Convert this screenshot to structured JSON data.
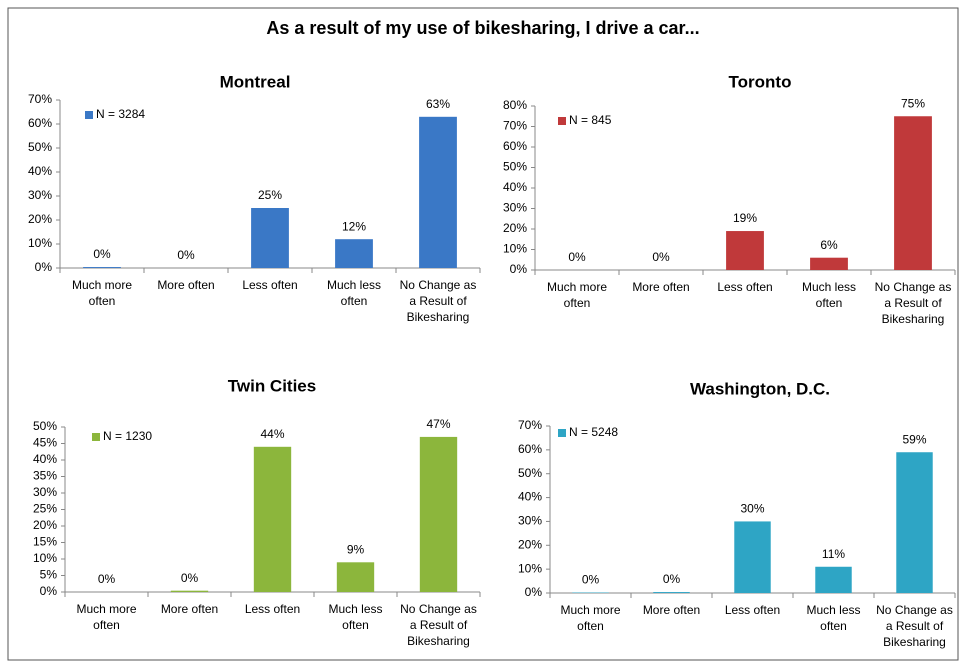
{
  "title": "As a result of my use of bikesharing, I drive a car...",
  "chart_data": [
    {
      "type": "bar",
      "title": "Montreal",
      "categories": [
        "Much more often",
        "More often",
        "Less often",
        "Much less often",
        "No Change as a Result of Bikesharing"
      ],
      "series": [
        {
          "name": "N = 3284",
          "color": "#3a78c6",
          "values": [
            0.4,
            0,
            25,
            12,
            63
          ],
          "value_labels": [
            "0%",
            "0%",
            "25%",
            "12%",
            "63%"
          ]
        }
      ],
      "ylim": [
        0,
        70
      ],
      "yticks": [
        {
          "value": 0,
          "label": "0%"
        },
        {
          "value": 10,
          "label": "10%"
        },
        {
          "value": 20,
          "label": "20%"
        },
        {
          "value": 30,
          "label": "30%"
        },
        {
          "value": 40,
          "label": "40%"
        },
        {
          "value": 50,
          "label": "50%"
        },
        {
          "value": 60,
          "label": "60%"
        },
        {
          "value": 70,
          "label": "70%"
        }
      ],
      "grid": false,
      "legend": "top-left"
    },
    {
      "type": "bar",
      "title": "Toronto",
      "categories": [
        "Much more often",
        "More often",
        "Less often",
        "Much less often",
        "No Change as a Result of Bikesharing"
      ],
      "series": [
        {
          "name": "N = 845",
          "color": "#c0393a",
          "values": [
            0,
            0,
            19,
            6,
            75
          ],
          "value_labels": [
            "0%",
            "0%",
            "19%",
            "6%",
            "75%"
          ]
        }
      ],
      "ylim": [
        0,
        80
      ],
      "yticks": [
        {
          "value": 0,
          "label": "0%"
        },
        {
          "value": 10,
          "label": "10%"
        },
        {
          "value": 20,
          "label": "20%"
        },
        {
          "value": 30,
          "label": "30%"
        },
        {
          "value": 40,
          "label": "40%"
        },
        {
          "value": 50,
          "label": "50%"
        },
        {
          "value": 60,
          "label": "60%"
        },
        {
          "value": 70,
          "label": "70%"
        },
        {
          "value": 80,
          "label": "80%"
        }
      ],
      "grid": false,
      "legend": "top-left"
    },
    {
      "type": "bar",
      "title": "Twin Cities",
      "categories": [
        "Much more often",
        "More often",
        "Less often",
        "Much less often",
        "No Change as a Result of Bikesharing"
      ],
      "series": [
        {
          "name": "N = 1230",
          "color": "#8cb63c",
          "values": [
            0,
            0.4,
            44,
            9,
            47
          ],
          "value_labels": [
            "0%",
            "0%",
            "44%",
            "9%",
            "47%"
          ]
        }
      ],
      "ylim": [
        0,
        50
      ],
      "yticks": [
        {
          "value": 0,
          "label": "0%"
        },
        {
          "value": 5,
          "label": "5%"
        },
        {
          "value": 10,
          "label": "10%"
        },
        {
          "value": 15,
          "label": "15%"
        },
        {
          "value": 20,
          "label": "20%"
        },
        {
          "value": 25,
          "label": "25%"
        },
        {
          "value": 30,
          "label": "30%"
        },
        {
          "value": 35,
          "label": "35%"
        },
        {
          "value": 40,
          "label": "40%"
        },
        {
          "value": 45,
          "label": "45%"
        },
        {
          "value": 50,
          "label": "50%"
        }
      ],
      "grid": false,
      "legend": "top-left"
    },
    {
      "type": "bar",
      "title": "Washington, D.C.",
      "categories": [
        "Much more often",
        "More often",
        "Less often",
        "Much less often",
        "No Change as a Result of Bikesharing"
      ],
      "series": [
        {
          "name": "N = 5248",
          "color": "#2ea5c5",
          "values": [
            0.2,
            0.4,
            30,
            11,
            59
          ],
          "value_labels": [
            "0%",
            "0%",
            "30%",
            "11%",
            "59%"
          ]
        }
      ],
      "ylim": [
        0,
        70
      ],
      "yticks": [
        {
          "value": 0,
          "label": "0%"
        },
        {
          "value": 10,
          "label": "10%"
        },
        {
          "value": 20,
          "label": "20%"
        },
        {
          "value": 30,
          "label": "30%"
        },
        {
          "value": 40,
          "label": "40%"
        },
        {
          "value": 50,
          "label": "50%"
        },
        {
          "value": 60,
          "label": "60%"
        },
        {
          "value": 70,
          "label": "70%"
        }
      ],
      "grid": false,
      "legend": "top-left"
    }
  ]
}
